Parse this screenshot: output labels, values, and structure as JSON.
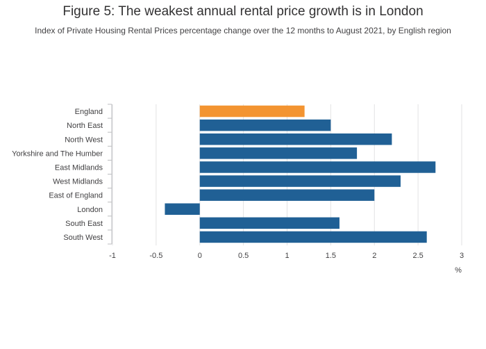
{
  "title": "Figure 5: The weakest annual rental price growth is in London",
  "subtitle": "Index of Private Housing Rental Prices percentage change over the 12 months to August 2021, by English region",
  "colors": {
    "highlight": "#f39431",
    "default": "#206095",
    "grid": "#e2e2e3",
    "axis": "#bcbec0"
  },
  "chart_data": {
    "type": "bar",
    "orientation": "horizontal",
    "title": "Figure 5: The weakest annual rental price growth is in London",
    "xlabel": "%",
    "ylabel": "",
    "xlim": [
      -1,
      3
    ],
    "xticks": [
      -1,
      -0.5,
      0,
      0.5,
      1,
      1.5,
      2,
      2.5,
      3
    ],
    "xtick_labels": [
      "-1",
      "-0.5",
      "0",
      "0.5",
      "1",
      "1.5",
      "2",
      "2.5",
      "3"
    ],
    "grid": true,
    "categories": [
      "England",
      "North East",
      "North West",
      "Yorkshire and The Humber",
      "East Midlands",
      "West Midlands",
      "East of England",
      "London",
      "South East",
      "South West"
    ],
    "values": [
      1.2,
      1.5,
      2.2,
      1.8,
      2.7,
      2.3,
      2.0,
      -0.4,
      1.6,
      2.6
    ],
    "highlight": [
      "England"
    ]
  }
}
